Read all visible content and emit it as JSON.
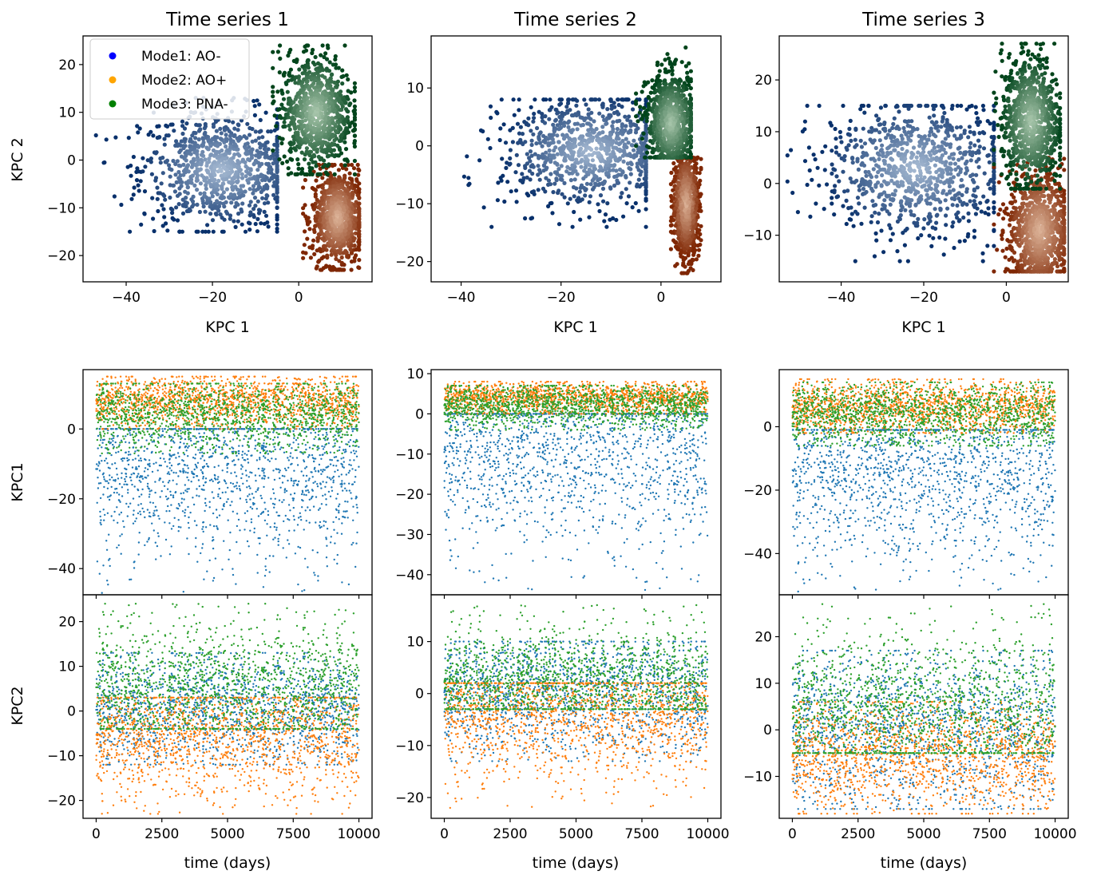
{
  "figure": {
    "column_titles": [
      "Time series 1",
      "Time series 2",
      "Time series 3"
    ],
    "top_row_ylabel": "KPC 2",
    "middle_row_ylabel": "KPC1",
    "bottom_row_ylabel": "KPC2",
    "top_row_xlabel": "KPC 1",
    "bottom_row_xlabel": "time (days)"
  },
  "legend": {
    "location": "upper-left of top-left panel",
    "entries": [
      {
        "label": "Mode1: AO-",
        "color": "#0000ff"
      },
      {
        "label": "Mode2: AO+",
        "color": "#ffa500"
      },
      {
        "label": "Mode3: PNA-",
        "color": "#008000"
      }
    ]
  },
  "colors": {
    "mode1_series": "#1f77b4",
    "mode2_series": "#ff7f0e",
    "mode3_series": "#2ca02c",
    "mode1_colormap": "Blues",
    "mode2_colormap": "Oranges",
    "mode3_colormap": "Greens"
  },
  "chart_data": [
    {
      "type": "scatter",
      "title": "Time series 1",
      "xlabel": "KPC 1",
      "ylabel": "KPC 2",
      "xlim": [
        -50,
        17
      ],
      "ylim": [
        -25.5,
        26
      ],
      "xticks": [
        -40,
        -20,
        0
      ],
      "yticks": [
        -20,
        -10,
        0,
        10,
        20
      ],
      "legend": [
        "Mode1: AO-",
        "Mode2: AO+",
        "Mode3: PNA-"
      ],
      "clusters": [
        {
          "mode": "Mode1: AO-",
          "x_range": [
            -47,
            -5
          ],
          "y_range": [
            -15,
            13
          ],
          "center": [
            -18,
            -2
          ]
        },
        {
          "mode": "Mode2: AO+",
          "x_range": [
            1,
            14
          ],
          "y_range": [
            -23,
            -1
          ],
          "center": [
            9,
            -12
          ]
        },
        {
          "mode": "Mode3: PNA-",
          "x_range": [
            -6,
            13
          ],
          "y_range": [
            -3,
            24
          ],
          "center": [
            4,
            10
          ]
        }
      ]
    },
    {
      "type": "scatter",
      "title": "Time series 2",
      "xlabel": "KPC 1",
      "ylabel": "",
      "xlim": [
        -46,
        12
      ],
      "ylim": [
        -23.5,
        19
      ],
      "xticks": [
        -40,
        -20,
        0
      ],
      "yticks": [
        -20,
        -10,
        0,
        10
      ],
      "clusters": [
        {
          "mode": "Mode1: AO-",
          "x_range": [
            -43,
            -3
          ],
          "y_range": [
            -14,
            8
          ],
          "center": [
            -14,
            -1
          ]
        },
        {
          "mode": "Mode2: AO+",
          "x_range": [
            2,
            8
          ],
          "y_range": [
            -22,
            -2
          ],
          "center": [
            5,
            -10
          ]
        },
        {
          "mode": "Mode3: PNA-",
          "x_range": [
            -5,
            6
          ],
          "y_range": [
            -2,
            17
          ],
          "center": [
            2,
            4
          ]
        }
      ]
    },
    {
      "type": "scatter",
      "title": "Time series 3",
      "xlabel": "KPC 1",
      "ylabel": "",
      "xlim": [
        -55,
        15
      ],
      "ylim": [
        -19,
        28.5
      ],
      "xticks": [
        -40,
        -20,
        0
      ],
      "yticks": [
        -10,
        0,
        10,
        20
      ],
      "clusters": [
        {
          "mode": "Mode1: AO-",
          "x_range": [
            -53,
            -3
          ],
          "y_range": [
            -15,
            15
          ],
          "center": [
            -22,
            3
          ]
        },
        {
          "mode": "Mode2: AO+",
          "x_range": [
            -3,
            14
          ],
          "y_range": [
            -17,
            9
          ],
          "center": [
            8,
            -9
          ]
        },
        {
          "mode": "Mode3: PNA-",
          "x_range": [
            -3,
            13
          ],
          "y_range": [
            -1,
            27
          ],
          "center": [
            6,
            12
          ]
        }
      ]
    },
    {
      "type": "scatter",
      "xlabel": "",
      "ylabel": "KPC1",
      "xlim": [
        -500,
        10500
      ],
      "ylim": [
        -47.5,
        17
      ],
      "xticks": [
        0,
        2500,
        5000,
        7500,
        10000
      ],
      "yticks": [
        -40,
        -20,
        0
      ],
      "series": [
        {
          "name": "Mode1: AO-",
          "y_range": [
            -47,
            0
          ],
          "typical": -12
        },
        {
          "name": "Mode2: AO+",
          "y_range": [
            0,
            15
          ],
          "typical": 8
        },
        {
          "name": "Mode3: PNA-",
          "y_range": [
            -7,
            13
          ],
          "typical": 4
        }
      ]
    },
    {
      "type": "scatter",
      "xlabel": "",
      "ylabel": "",
      "xlim": [
        -500,
        10500
      ],
      "ylim": [
        -45,
        11
      ],
      "xticks": [
        0,
        2500,
        5000,
        7500,
        10000
      ],
      "yticks": [
        -40,
        -30,
        -20,
        -10,
        0,
        10
      ],
      "series": [
        {
          "name": "Mode1: AO-",
          "y_range": [
            -44,
            0
          ],
          "typical": -10
        },
        {
          "name": "Mode2: AO+",
          "y_range": [
            0,
            8
          ],
          "typical": 4
        },
        {
          "name": "Mode3: PNA-",
          "y_range": [
            -4,
            7
          ],
          "typical": 2
        }
      ]
    },
    {
      "type": "scatter",
      "xlabel": "",
      "ylabel": "",
      "xlim": [
        -500,
        10500
      ],
      "ylim": [
        -53,
        18
      ],
      "xticks": [
        0,
        2500,
        5000,
        7500,
        10000
      ],
      "yticks": [
        -40,
        -20,
        0
      ],
      "series": [
        {
          "name": "Mode1: AO-",
          "y_range": [
            -52,
            -1
          ],
          "typical": -15
        },
        {
          "name": "Mode2: AO+",
          "y_range": [
            -2,
            15
          ],
          "typical": 6
        },
        {
          "name": "Mode3: PNA-",
          "y_range": [
            -6,
            14
          ],
          "typical": 4
        }
      ]
    },
    {
      "type": "scatter",
      "xlabel": "time (days)",
      "ylabel": "KPC2",
      "xlim": [
        -500,
        10500
      ],
      "ylim": [
        -24,
        26
      ],
      "xticks": [
        0,
        2500,
        5000,
        7500,
        10000
      ],
      "yticks": [
        -20,
        -10,
        0,
        10,
        20
      ],
      "series": [
        {
          "name": "Mode1: AO-",
          "y_range": [
            -12,
            13
          ],
          "typical": 0
        },
        {
          "name": "Mode2: AO+",
          "y_range": [
            -23,
            3
          ],
          "typical": -6
        },
        {
          "name": "Mode3: PNA-",
          "y_range": [
            -4,
            24
          ],
          "typical": 5
        }
      ]
    },
    {
      "type": "scatter",
      "xlabel": "time (days)",
      "ylabel": "",
      "xlim": [
        -500,
        10500
      ],
      "ylim": [
        -24,
        19
      ],
      "xticks": [
        0,
        2500,
        5000,
        7500,
        10000
      ],
      "yticks": [
        -20,
        -10,
        0,
        10
      ],
      "series": [
        {
          "name": "Mode1: AO-",
          "y_range": [
            -13,
            10
          ],
          "typical": 0
        },
        {
          "name": "Mode2: AO+",
          "y_range": [
            -22,
            2
          ],
          "typical": -4
        },
        {
          "name": "Mode3: PNA-",
          "y_range": [
            -3,
            17
          ],
          "typical": 2
        }
      ]
    },
    {
      "type": "scatter",
      "xlabel": "time (days)",
      "ylabel": "",
      "xlim": [
        -500,
        10500
      ],
      "ylim": [
        -19,
        29
      ],
      "xticks": [
        0,
        2500,
        5000,
        7500,
        10000
      ],
      "yticks": [
        -10,
        0,
        10,
        20
      ],
      "series": [
        {
          "name": "Mode1: AO-",
          "y_range": [
            -17,
            17
          ],
          "typical": 0
        },
        {
          "name": "Mode2: AO+",
          "y_range": [
            -18,
            6
          ],
          "typical": -6
        },
        {
          "name": "Mode3: PNA-",
          "y_range": [
            -5,
            27
          ],
          "typical": 4
        }
      ]
    }
  ]
}
